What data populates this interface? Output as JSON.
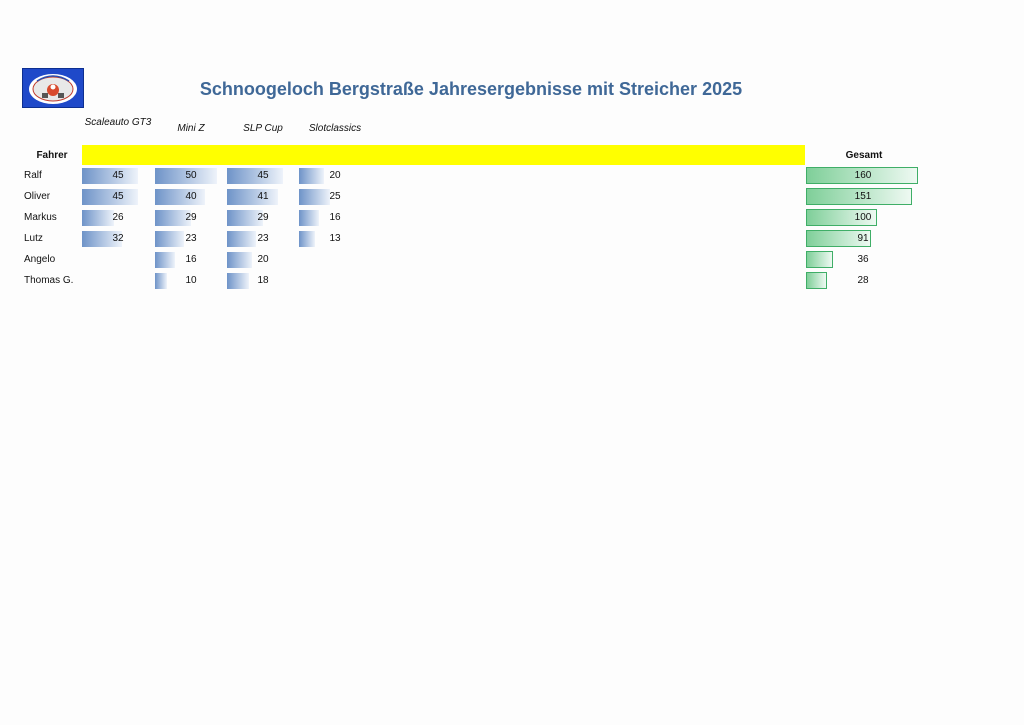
{
  "title": "Schnoogeloch Bergstraße Jahresergebnisse mit Streicher 2025",
  "colors": {
    "title": "#3f6897",
    "band": "#ffff00",
    "bar": "#6e93c8",
    "total_bar": "#7fcf99",
    "total_border": "#3fae67",
    "logo_bg": "#1f49c9"
  },
  "logo": {
    "icon": "club-logo-icon"
  },
  "table": {
    "driver_header": "Fahrer",
    "total_header": "Gesamt",
    "columns": [
      {
        "label": "Scaleauto GT3"
      },
      {
        "label": "Mini Z"
      },
      {
        "label": "SLP Cup"
      },
      {
        "label": "Slotclassics"
      }
    ],
    "scale_max": 50,
    "total_scale_max": 160,
    "rows": [
      {
        "name": "Ralf",
        "values": [
          45,
          50,
          45,
          20
        ],
        "total": 160
      },
      {
        "name": "Oliver",
        "values": [
          45,
          40,
          41,
          25
        ],
        "total": 151
      },
      {
        "name": "Markus",
        "values": [
          26,
          29,
          29,
          16
        ],
        "total": 100
      },
      {
        "name": "Lutz",
        "values": [
          32,
          23,
          23,
          13
        ],
        "total": 91
      },
      {
        "name": "Angelo",
        "values": [
          null,
          16,
          20,
          null
        ],
        "total": 36
      },
      {
        "name": "Thomas G.",
        "values": [
          null,
          10,
          18,
          null
        ],
        "total": 28
      }
    ]
  }
}
